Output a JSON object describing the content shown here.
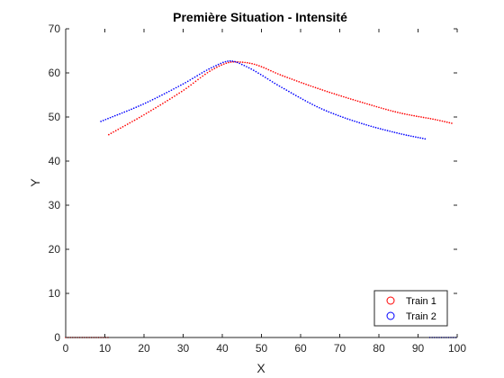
{
  "chart_data": {
    "type": "scatter",
    "title": "Première Situation - Intensité",
    "xlabel": "X",
    "ylabel": "Y",
    "xlim": [
      0,
      100
    ],
    "ylim": [
      0,
      70
    ],
    "xticks": [
      0,
      10,
      20,
      30,
      40,
      50,
      60,
      70,
      80,
      90,
      100
    ],
    "yticks": [
      0,
      10,
      20,
      30,
      40,
      50,
      60,
      70
    ],
    "grid": false,
    "legend_position": "bottom-right",
    "series": [
      {
        "name": "Train 1",
        "color": "#ff0000",
        "marker": "circle",
        "curve": [
          [
            11,
            46
          ],
          [
            20,
            50.5
          ],
          [
            30,
            56
          ],
          [
            38,
            61
          ],
          [
            43,
            62.5
          ],
          [
            48,
            62
          ],
          [
            55,
            59.5
          ],
          [
            65,
            56.3
          ],
          [
            75,
            53.5
          ],
          [
            85,
            51
          ],
          [
            95,
            49.3
          ],
          [
            99,
            48.5
          ]
        ],
        "baseline": [
          [
            0,
            0
          ],
          [
            11,
            0
          ]
        ]
      },
      {
        "name": "Train 2",
        "color": "#0000ff",
        "marker": "circle",
        "curve": [
          [
            9,
            49
          ],
          [
            20,
            53
          ],
          [
            30,
            57.5
          ],
          [
            38,
            61.5
          ],
          [
            42,
            62.7
          ],
          [
            46,
            61.5
          ],
          [
            55,
            56.8
          ],
          [
            65,
            52
          ],
          [
            75,
            48.7
          ],
          [
            85,
            46.3
          ],
          [
            92,
            45
          ]
        ],
        "baseline": [
          [
            93,
            0
          ],
          [
            100,
            0
          ]
        ]
      }
    ]
  }
}
